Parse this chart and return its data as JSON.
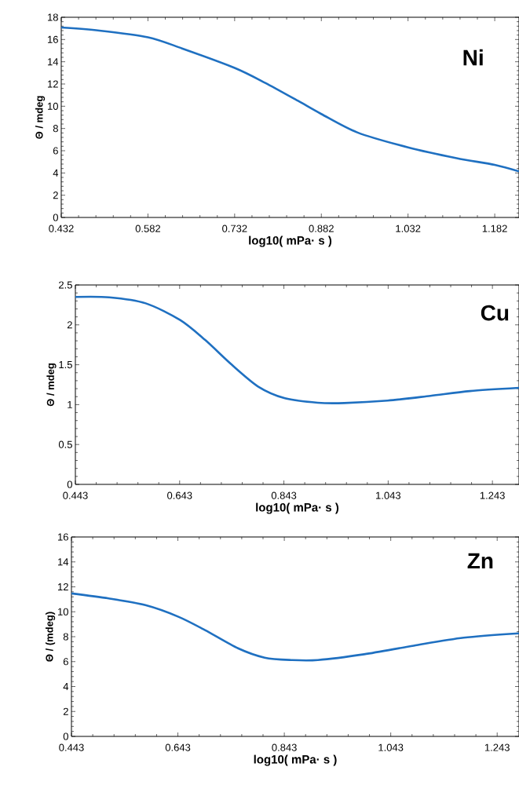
{
  "chart_data": [
    {
      "type": "line",
      "color": "#1f70c1",
      "xlabel": "log10( mPa· s )",
      "ylabel": "Θ / mdeg",
      "annotations": [
        "Ni"
      ],
      "x": [
        0.432,
        0.498,
        0.582,
        0.641,
        0.732,
        0.785,
        0.841,
        0.882,
        0.944,
        1.032,
        1.116,
        1.182,
        1.224
      ],
      "values": [
        17.08,
        16.8,
        16.2,
        15.2,
        13.45,
        12.1,
        10.5,
        9.3,
        7.65,
        6.3,
        5.33,
        4.73,
        4.14
      ],
      "xlim": [
        0.432,
        1.224
      ],
      "ylim": [
        0,
        18
      ],
      "xticks": [
        0.432,
        0.582,
        0.732,
        0.882,
        1.032,
        1.182
      ],
      "yticks": [
        0,
        2,
        4,
        6,
        8,
        10,
        12,
        14,
        16,
        18
      ]
    },
    {
      "type": "line",
      "color": "#1f70c1",
      "xlabel": "log10( mPa· s )",
      "ylabel": "Θ / mdeg",
      "annotations": [
        "Cu"
      ],
      "x": [
        0.443,
        0.508,
        0.578,
        0.644,
        0.692,
        0.743,
        0.794,
        0.845,
        0.908,
        0.959,
        1.042,
        1.124,
        1.2,
        1.294
      ],
      "values": [
        2.35,
        2.345,
        2.27,
        2.06,
        1.81,
        1.5,
        1.225,
        1.08,
        1.024,
        1.02,
        1.05,
        1.11,
        1.17,
        1.21
      ],
      "xlim": [
        0.443,
        1.294
      ],
      "ylim": [
        0,
        2.5
      ],
      "xticks": [
        0.443,
        0.643,
        0.843,
        1.043,
        1.243
      ],
      "yticks": [
        0,
        0.5,
        1,
        1.5,
        2,
        2.5
      ]
    },
    {
      "type": "line",
      "color": "#1f70c1",
      "xlabel": "log10( mPa· s )",
      "ylabel": "Θ / (mdeg)",
      "annotations": [
        "Zn"
      ],
      "x": [
        0.443,
        0.513,
        0.582,
        0.644,
        0.694,
        0.756,
        0.806,
        0.856,
        0.906,
        0.993,
        1.086,
        1.18,
        1.284
      ],
      "values": [
        11.47,
        11.07,
        10.53,
        9.6,
        8.53,
        7.07,
        6.32,
        6.13,
        6.13,
        6.59,
        7.28,
        7.92,
        8.27
      ],
      "xlim": [
        0.443,
        1.284
      ],
      "ylim": [
        0,
        16
      ],
      "xticks": [
        0.443,
        0.643,
        0.843,
        1.043,
        1.243
      ],
      "yticks": [
        0,
        2,
        4,
        6,
        8,
        10,
        12,
        14,
        16
      ]
    }
  ]
}
